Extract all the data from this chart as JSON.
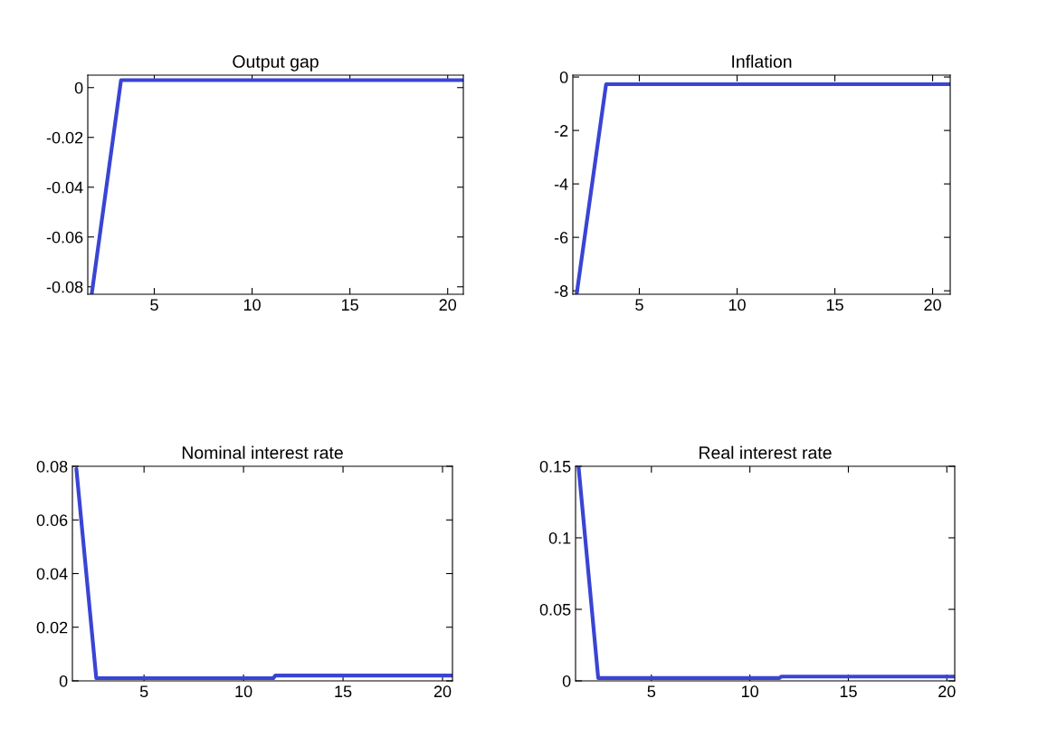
{
  "chart_data": [
    {
      "type": "line",
      "title": "Output gap",
      "x": [
        1.8,
        3.3,
        20.8
      ],
      "series": [
        {
          "color": "#3a44d4",
          "values": [
            -0.083,
            0.003,
            0.003
          ]
        }
      ],
      "xlim": [
        1.6,
        20.8
      ],
      "xticks": [
        5,
        10,
        15,
        20
      ],
      "ylim": [
        -0.083,
        0.005
      ],
      "yticks": [
        0,
        -0.02,
        -0.04,
        -0.06,
        -0.08
      ],
      "grid": false,
      "marker": "none",
      "line_style": "solid"
    },
    {
      "type": "line",
      "title": "Inflation",
      "x": [
        1.8,
        3.3,
        20.9
      ],
      "series": [
        {
          "color": "#3a44d4",
          "values": [
            -8.1,
            -0.27,
            -0.27
          ]
        }
      ],
      "xlim": [
        1.6,
        20.9
      ],
      "xticks": [
        5,
        10,
        15,
        20
      ],
      "ylim": [
        -8.13,
        0.07
      ],
      "yticks": [
        0,
        -2,
        -4,
        -6,
        -8
      ],
      "grid": false,
      "marker": "none",
      "line_style": "solid"
    },
    {
      "type": "line",
      "title": "Nominal interest rate",
      "x": [
        1.6,
        2.6,
        11.5,
        11.6,
        20.5
      ],
      "series": [
        {
          "color": "#3a44d4",
          "values": [
            0.079,
            0.001,
            0.001,
            0.002,
            0.002
          ]
        }
      ],
      "xlim": [
        1.4,
        20.5
      ],
      "xticks": [
        5,
        10,
        15,
        20
      ],
      "ylim": [
        0,
        0.08
      ],
      "yticks": [
        0,
        0.02,
        0.04,
        0.06,
        0.08
      ],
      "grid": false,
      "marker": "none",
      "line_style": "solid"
    },
    {
      "type": "line",
      "title": "Real interest rate",
      "x": [
        1.3,
        2.3,
        11.5,
        11.6,
        20.4
      ],
      "series": [
        {
          "color": "#3a44d4",
          "values": [
            0.15,
            0.002,
            0.002,
            0.003,
            0.003
          ]
        }
      ],
      "xlim": [
        1.15,
        20.4
      ],
      "xticks": [
        5,
        10,
        15,
        20
      ],
      "ylim": [
        0,
        0.15
      ],
      "yticks": [
        0,
        0.05,
        0.1,
        0.15
      ],
      "grid": false,
      "marker": "none",
      "line_style": "solid"
    }
  ]
}
